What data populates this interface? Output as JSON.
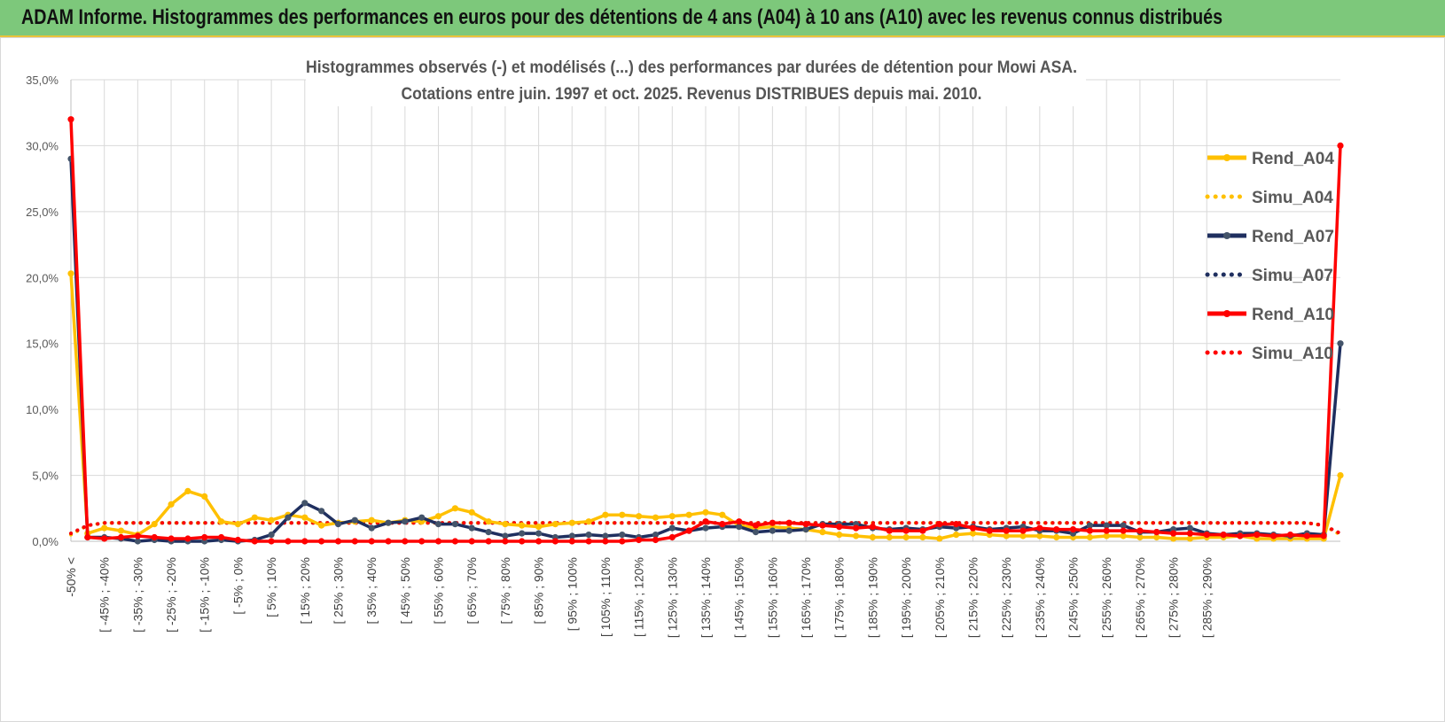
{
  "banner": {
    "title": "ADAM Informe. Histogrammes des performances en euros pour des détentions de 4 ans (A04) à 10 ans (A10) avec les revenus connus distribués"
  },
  "chart_data": {
    "type": "line",
    "title_line1": "Histogrammes observés (-) et modélisés (...) des performances par durées de détention pour Mowi ASA.",
    "title_line2": "Cotations entre juin. 1997 et oct. 2025.  Revenus DISTRIBUES depuis mai. 2010.",
    "xlabel": "",
    "ylabel": "",
    "ylim": [
      0,
      35
    ],
    "yticks": [
      "0,0%",
      "5,0%",
      "10,0%",
      "15,0%",
      "20,0%",
      "25,0%",
      "30,0%",
      "35,0%"
    ],
    "grid": true,
    "legend_position": "right",
    "x_tick_labels": [
      "-50% <",
      "[ -45% ; -40%",
      "[ -35% ; -30%",
      "[ -25% ; -20%",
      "[ -15% ; -10%",
      "[ -5% ; 0%",
      "[ 5% ; 10%",
      "[ 15% ; 20%",
      "[ 25% ; 30%",
      "[ 35% ; 40%",
      "[ 45% ; 50%",
      "[ 55% ; 60%",
      "[ 65% ; 70%",
      "[ 75% ; 80%",
      "[ 85% ; 90%",
      "[ 95% ; 100%",
      "[ 105% ; 110%",
      "[ 115% ; 120%",
      "[ 125% ; 130%",
      "[ 135% ; 140%",
      "[ 145% ; 150%",
      "[ 155% ; 160%",
      "[ 165% ; 170%",
      "[ 175% ; 180%",
      "[ 185% ; 190%",
      "[ 195% ; 200%",
      "[ 205% ; 210%",
      "[ 215% ; 220%",
      "[ 225% ; 230%",
      "[ 235% ; 240%",
      "[ 245% ; 250%",
      "[ 255% ; 260%",
      "[ 265% ; 270%",
      "[ 275% ; 280%",
      "[ 285% ; 290%"
    ],
    "series": [
      {
        "name": "Rend_A04",
        "style": "solid",
        "color": "#ffc000",
        "markers": true,
        "values": [
          20.3,
          0.6,
          1.0,
          0.8,
          0.5,
          1.3,
          2.8,
          3.8,
          3.4,
          1.5,
          1.3,
          1.8,
          1.6,
          2.0,
          1.8,
          1.2,
          1.4,
          1.5,
          1.6,
          1.4,
          1.6,
          1.5,
          1.9,
          2.5,
          2.2,
          1.5,
          1.3,
          1.2,
          1.1,
          1.3,
          1.4,
          1.5,
          2.0,
          2.0,
          1.9,
          1.8,
          1.9,
          2.0,
          2.2,
          2.0,
          1.2,
          1.0,
          1.1,
          1.0,
          0.9,
          0.7,
          0.5,
          0.4,
          0.3,
          0.3,
          0.3,
          0.3,
          0.2,
          0.5,
          0.6,
          0.5,
          0.4,
          0.4,
          0.4,
          0.3,
          0.3,
          0.3,
          0.4,
          0.4,
          0.3,
          0.3,
          0.2,
          0.2,
          0.3,
          0.3,
          0.4,
          0.2,
          0.2,
          0.2,
          0.2,
          0.2,
          5.0
        ]
      },
      {
        "name": "Simu_A04",
        "style": "dotted",
        "color": "#ffc000",
        "markers": false,
        "values": [
          0.5,
          1.2,
          1.4,
          1.4,
          1.4,
          1.4,
          1.4,
          1.4,
          1.4,
          1.4,
          1.4,
          1.4,
          1.4,
          1.4,
          1.4,
          1.4,
          1.4,
          1.4,
          1.4,
          1.4,
          1.4,
          1.4,
          1.4,
          1.4,
          1.4,
          1.4,
          1.4,
          1.4,
          1.4,
          1.4,
          1.4,
          1.4,
          1.4,
          1.4,
          1.4,
          1.4,
          1.4,
          1.4,
          1.4,
          1.4,
          1.4,
          1.4,
          1.4,
          1.4,
          1.4,
          1.4,
          1.4,
          1.4,
          1.4,
          1.4,
          1.4,
          1.4,
          1.4,
          1.4,
          1.4,
          1.4,
          1.4,
          1.4,
          1.4,
          1.4,
          1.4,
          1.4,
          1.4,
          1.4,
          1.4,
          1.4,
          1.4,
          1.4,
          1.4,
          1.4,
          1.4,
          1.4,
          1.4,
          1.4,
          1.4,
          1.2,
          0.5
        ]
      },
      {
        "name": "Rend_A07",
        "style": "solid",
        "color": "#1f2f5f",
        "markers": true,
        "values": [
          29.0,
          0.3,
          0.3,
          0.2,
          0.0,
          0.1,
          0.0,
          0.0,
          0.0,
          0.1,
          0.0,
          0.1,
          0.5,
          1.8,
          2.9,
          2.3,
          1.3,
          1.6,
          1.0,
          1.4,
          1.5,
          1.8,
          1.3,
          1.3,
          1.0,
          0.7,
          0.4,
          0.6,
          0.6,
          0.3,
          0.4,
          0.5,
          0.4,
          0.5,
          0.3,
          0.5,
          1.0,
          0.8,
          1.0,
          1.1,
          1.1,
          0.7,
          0.8,
          0.8,
          0.9,
          1.3,
          1.3,
          1.3,
          1.0,
          0.9,
          1.0,
          0.9,
          1.1,
          1.0,
          1.1,
          0.9,
          1.0,
          1.1,
          0.8,
          0.8,
          0.6,
          1.2,
          1.2,
          1.2,
          0.7,
          0.7,
          0.9,
          1.0,
          0.6,
          0.5,
          0.6,
          0.6,
          0.5,
          0.4,
          0.6,
          0.5,
          15.0
        ]
      },
      {
        "name": "Simu_A07",
        "style": "dotted",
        "color": "#1f2f5f",
        "markers": false,
        "values": [
          0.6,
          1.2,
          1.4,
          1.4,
          1.4,
          1.4,
          1.4,
          1.4,
          1.4,
          1.4,
          1.4,
          1.4,
          1.4,
          1.4,
          1.4,
          1.4,
          1.4,
          1.4,
          1.4,
          1.4,
          1.4,
          1.4,
          1.4,
          1.4,
          1.4,
          1.4,
          1.4,
          1.4,
          1.4,
          1.4,
          1.4,
          1.4,
          1.4,
          1.4,
          1.4,
          1.4,
          1.4,
          1.4,
          1.4,
          1.4,
          1.4,
          1.4,
          1.4,
          1.4,
          1.4,
          1.4,
          1.4,
          1.4,
          1.4,
          1.4,
          1.4,
          1.4,
          1.4,
          1.4,
          1.4,
          1.4,
          1.4,
          1.4,
          1.4,
          1.4,
          1.4,
          1.4,
          1.4,
          1.4,
          1.4,
          1.4,
          1.4,
          1.4,
          1.4,
          1.4,
          1.4,
          1.4,
          1.4,
          1.4,
          1.4,
          1.2,
          0.6
        ]
      },
      {
        "name": "Rend_A10",
        "style": "solid",
        "color": "#ff0000",
        "markers": true,
        "values": [
          32.0,
          0.3,
          0.2,
          0.3,
          0.4,
          0.3,
          0.2,
          0.2,
          0.3,
          0.3,
          0.1,
          0.0,
          0.0,
          0.0,
          0.0,
          0.0,
          0.0,
          0.0,
          0.0,
          0.0,
          0.0,
          0.0,
          0.0,
          0.0,
          0.0,
          0.0,
          0.0,
          0.0,
          0.0,
          0.0,
          0.0,
          0.0,
          0.0,
          0.0,
          0.1,
          0.1,
          0.3,
          0.8,
          1.5,
          1.3,
          1.5,
          1.2,
          1.4,
          1.4,
          1.3,
          1.2,
          1.1,
          1.0,
          1.1,
          0.8,
          0.8,
          0.8,
          1.3,
          1.3,
          1.0,
          0.8,
          0.8,
          0.8,
          1.0,
          0.9,
          0.9,
          0.8,
          0.8,
          0.8,
          0.8,
          0.7,
          0.6,
          0.6,
          0.5,
          0.5,
          0.4,
          0.5,
          0.4,
          0.5,
          0.4,
          0.4,
          30.0
        ]
      },
      {
        "name": "Simu_A10",
        "style": "dotted",
        "color": "#ff0000",
        "markers": false,
        "values": [
          0.6,
          1.2,
          1.4,
          1.4,
          1.4,
          1.4,
          1.4,
          1.4,
          1.4,
          1.4,
          1.4,
          1.4,
          1.4,
          1.4,
          1.4,
          1.4,
          1.4,
          1.4,
          1.4,
          1.4,
          1.4,
          1.4,
          1.4,
          1.4,
          1.4,
          1.4,
          1.4,
          1.4,
          1.4,
          1.4,
          1.4,
          1.4,
          1.4,
          1.4,
          1.4,
          1.4,
          1.4,
          1.4,
          1.4,
          1.4,
          1.4,
          1.4,
          1.4,
          1.4,
          1.4,
          1.4,
          1.4,
          1.4,
          1.4,
          1.4,
          1.4,
          1.4,
          1.4,
          1.4,
          1.4,
          1.4,
          1.4,
          1.4,
          1.4,
          1.4,
          1.4,
          1.4,
          1.4,
          1.4,
          1.4,
          1.4,
          1.4,
          1.4,
          1.4,
          1.4,
          1.4,
          1.4,
          1.4,
          1.4,
          1.4,
          1.2,
          0.6
        ]
      }
    ]
  }
}
